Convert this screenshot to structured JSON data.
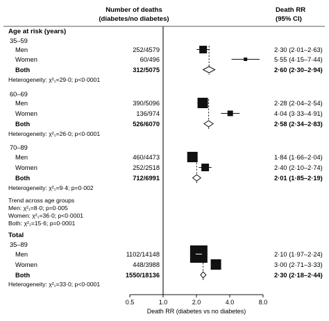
{
  "headers": {
    "deaths_line1": "Number of deaths",
    "deaths_line2": "(diabetes/no diabetes)",
    "rr_line1": "Death RR",
    "rr_line2": "(95% CI)"
  },
  "chart_data": {
    "type": "forest",
    "xlabel": "Death RR (diabetes vs no diabetes)",
    "xscale": "log",
    "xlim": [
      0.5,
      8.0
    ],
    "xticks": [
      "0.5",
      "1.0",
      "2.0",
      "4.0",
      "8.0"
    ],
    "xtick_values": [
      0.5,
      1.0,
      2.0,
      4.0,
      8.0
    ],
    "reference_line": 1.0,
    "sections": [
      {
        "title": "Age at risk (years)",
        "groups": [
          {
            "subtitle": "35–59",
            "pooled": 2.6,
            "rows": [
              {
                "label": "Men",
                "deaths": "252/4579",
                "rr": 2.3,
                "lo": 2.01,
                "hi": 2.63,
                "rr_text": "2·30 (2·01–2·63)",
                "weight": "medium"
              },
              {
                "label": "Women",
                "deaths": "60/496",
                "rr": 5.55,
                "lo": 4.15,
                "hi": 7.44,
                "rr_text": "5·55 (4·15–7·44)",
                "weight": "tiny"
              },
              {
                "label": "Both",
                "deaths": "312/5075",
                "rr": 2.6,
                "lo": 2.3,
                "hi": 2.94,
                "rr_text": "2·60 (2·30–2·94)",
                "bold": true,
                "diamond": true
              }
            ],
            "heterogeneity": "Heterogeneity: χ²₁=29·0; p<0·0001"
          },
          {
            "subtitle": "60–69",
            "pooled": 2.58,
            "rows": [
              {
                "label": "Men",
                "deaths": "390/5096",
                "rr": 2.28,
                "lo": 2.04,
                "hi": 2.54,
                "rr_text": "2·28 (2·04–2·54)",
                "weight": "large"
              },
              {
                "label": "Women",
                "deaths": "136/974",
                "rr": 4.04,
                "lo": 3.33,
                "hi": 4.91,
                "rr_text": "4·04 (3·33–4·91)",
                "weight": "small"
              },
              {
                "label": "Both",
                "deaths": "526/6070",
                "rr": 2.58,
                "lo": 2.34,
                "hi": 2.83,
                "rr_text": "2·58 (2·34–2·83)",
                "bold": true,
                "diamond": true
              }
            ],
            "heterogeneity": "Heterogeneity: χ²₁=26·0; p<0·0001"
          },
          {
            "subtitle": "70–89",
            "pooled": 2.01,
            "rows": [
              {
                "label": "Men",
                "deaths": "460/4473",
                "rr": 1.84,
                "lo": 1.66,
                "hi": 2.04,
                "rr_text": "1·84 (1·66–2·04)",
                "weight": "large"
              },
              {
                "label": "Women",
                "deaths": "252/2518",
                "rr": 2.4,
                "lo": 2.1,
                "hi": 2.74,
                "rr_text": "2·40 (2·10–2·74)",
                "weight": "medium"
              },
              {
                "label": "Both",
                "deaths": "712/6991",
                "rr": 2.01,
                "lo": 1.85,
                "hi": 2.19,
                "rr_text": "2·01 (1·85–2·19)",
                "bold": true,
                "diamond": true
              }
            ],
            "heterogeneity": "Heterogeneity: χ²₁=9·4; p=0·002"
          }
        ]
      },
      {
        "trend_title": "Trend across age groups",
        "trend_lines": [
          "Men: χ²₁=8·0; p=0·005",
          "Women: χ²₁=36·0; p<0·0001",
          "Both: χ²₁=15·6; p=0·0001"
        ]
      },
      {
        "title": "Total",
        "groups": [
          {
            "subtitle": "35–89",
            "pooled": 2.3,
            "rows": [
              {
                "label": "Men",
                "deaths": "1102/14148",
                "rr": 2.1,
                "lo": 1.97,
                "hi": 2.24,
                "rr_text": "2·10 (1·97–2·24)",
                "weight": "xlarge"
              },
              {
                "label": "Women",
                "deaths": "448/3988",
                "rr": 3.0,
                "lo": 2.71,
                "hi": 3.33,
                "rr_text": "3·00 (2·71–3·33)",
                "weight": "large"
              },
              {
                "label": "Both",
                "deaths": "1550/18136",
                "rr": 2.3,
                "lo": 2.18,
                "hi": 2.44,
                "rr_text": "2·30 (2·18–2·44)",
                "bold": true,
                "diamond": true
              }
            ],
            "heterogeneity": "Heterogeneity: χ²₁=33·0; p<0·0001"
          }
        ]
      }
    ]
  }
}
